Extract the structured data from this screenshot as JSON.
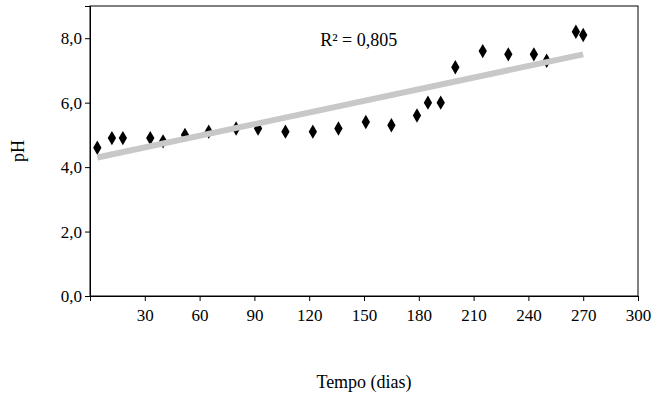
{
  "chart_data": {
    "type": "scatter",
    "x_label": "Tempo (dias)",
    "y_label": "pH",
    "annotations": [
      {
        "text": "R² = 0,805"
      }
    ],
    "xlim": [
      0,
      300
    ],
    "xticks": [
      30,
      60,
      90,
      120,
      150,
      180,
      210,
      240,
      270,
      300
    ],
    "ylim": [
      0,
      9
    ],
    "yticks": [
      {
        "value": 0,
        "label": "0,0"
      },
      {
        "value": 2,
        "label": "2,0"
      },
      {
        "value": 4,
        "label": "4,0"
      },
      {
        "value": 6,
        "label": "6,0"
      },
      {
        "value": 8,
        "label": "8,0"
      }
    ],
    "grid": false,
    "series": [
      {
        "type": "scatter",
        "marker": "diamond",
        "color": "#000000",
        "x": [
          4,
          12,
          18,
          33,
          40,
          52,
          65,
          80,
          92,
          107,
          122,
          136,
          151,
          165,
          179,
          185,
          192,
          200,
          215,
          229,
          243,
          250,
          266,
          270
        ],
        "values": [
          4.6,
          4.9,
          4.9,
          4.9,
          4.8,
          5.0,
          5.1,
          5.2,
          5.2,
          5.1,
          5.1,
          5.2,
          5.4,
          5.3,
          5.6,
          6.0,
          6.0,
          7.1,
          7.6,
          7.5,
          7.5,
          7.3,
          8.2,
          8.1
        ]
      },
      {
        "type": "line",
        "line_style": "solid",
        "color": "#c8c8c8",
        "x": [
          4,
          270
        ],
        "values": [
          4.3,
          7.5
        ]
      }
    ]
  }
}
